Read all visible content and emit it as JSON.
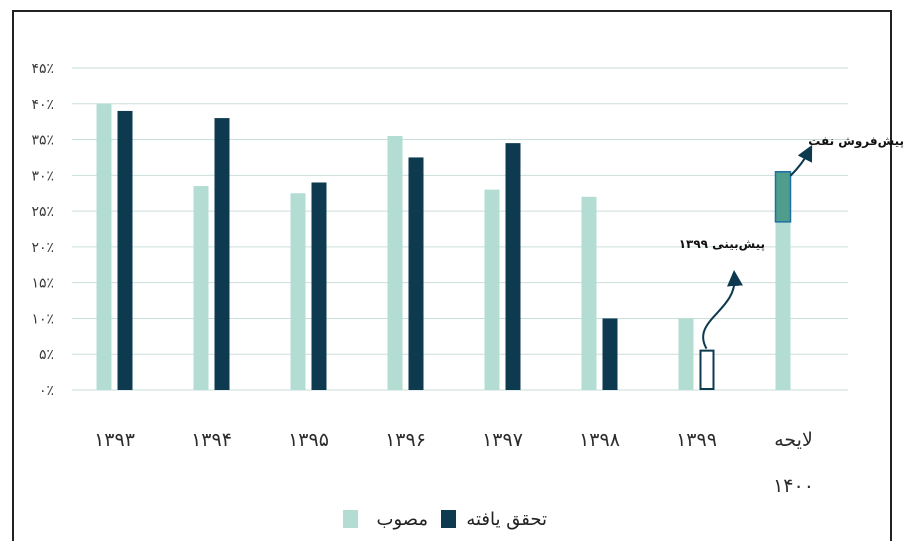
{
  "chart_data": {
    "type": "bar",
    "categories": [
      "۱۳۹۳",
      "۱۳۹۴",
      "۱۳۹۵",
      "۱۳۹۶",
      "۱۳۹۷",
      "۱۳۹۸",
      "۱۳۹۹",
      "لایحه ۱۴۰۰"
    ],
    "category_lines": [
      [
        "۱۳۹۳"
      ],
      [
        "۱۳۹۴"
      ],
      [
        "۱۳۹۵"
      ],
      [
        "۱۳۹۶"
      ],
      [
        "۱۳۹۷"
      ],
      [
        "۱۳۹۸"
      ],
      [
        "۱۳۹۹"
      ],
      [
        "لایحه",
        "۱۴۰۰"
      ]
    ],
    "series": [
      {
        "name": "مصوب",
        "color": "#b3dcd3",
        "values": [
          40,
          28.5,
          27.5,
          35.5,
          28,
          27,
          10,
          30.5
        ]
      },
      {
        "name": "تحقق یافته",
        "color": "#0d3a4e",
        "values": [
          39,
          38,
          29,
          32.5,
          34.5,
          10,
          5.5,
          null
        ]
      }
    ],
    "forecast": {
      "category": "۱۳۹۹",
      "value": 5.5,
      "style": "outlined",
      "label": "پیش‌بینی ۱۳۹۹"
    },
    "oil_presale": {
      "category": "لایحه ۱۴۰۰",
      "from": 23.5,
      "to": 30.5,
      "color": "#4f9e8d",
      "label": "پیش‌فروش نفت"
    },
    "y_ticks": [
      "۰٪",
      "۵٪",
      "۱۰٪",
      "۱۵٪",
      "۲۰٪",
      "۲۵٪",
      "۳۰٪",
      "۳۵٪",
      "۴۰٪",
      "۴۵٪"
    ],
    "ylim": [
      0,
      45
    ],
    "grid": true,
    "legend_position": "bottom"
  }
}
